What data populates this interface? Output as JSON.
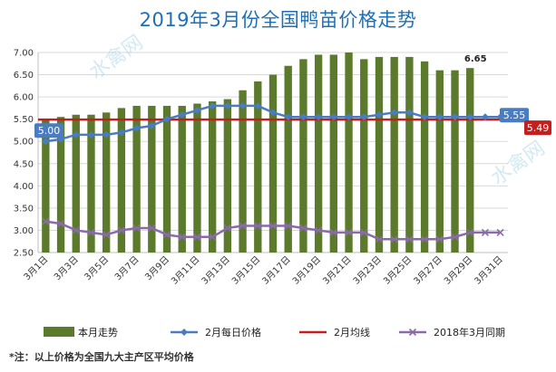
{
  "chart_data": {
    "type": "bar",
    "title": "2019年3月份全国鸭苗价格走势",
    "ylim": [
      2.5,
      7.0
    ],
    "yticks": [
      "2.50",
      "3.00",
      "3.50",
      "4.00",
      "4.50",
      "5.00",
      "5.50",
      "6.00",
      "6.50",
      "7.00"
    ],
    "categories": [
      "3月1日",
      "3月2日",
      "3月3日",
      "3月4日",
      "3月5日",
      "3月6日",
      "3月7日",
      "3月8日",
      "3月9日",
      "3月10日",
      "3月11日",
      "3月12日",
      "3月13日",
      "3月14日",
      "3月15日",
      "3月16日",
      "3月17日",
      "3月18日",
      "3月19日",
      "3月20日",
      "3月21日",
      "3月22日",
      "3月23日",
      "3月24日",
      "3月25日",
      "3月26日",
      "3月27日",
      "3月28日",
      "3月29日",
      "3月30日",
      "3月31日"
    ],
    "tick_labels": [
      "3月1日",
      "3月3日",
      "3月5日",
      "3月7日",
      "3月9日",
      "3月11日",
      "3月13日",
      "3月15日",
      "3月17日",
      "3月19日",
      "3月21日",
      "3月23日",
      "3月25日",
      "3月27日",
      "3月29日",
      "3月31日"
    ],
    "series": [
      {
        "name": "本月走势",
        "kind": "bar",
        "color": "#5b7a2b",
        "values": [
          5.5,
          5.55,
          5.6,
          5.6,
          5.65,
          5.75,
          5.8,
          5.8,
          5.8,
          5.8,
          5.85,
          5.9,
          5.95,
          6.15,
          6.35,
          6.5,
          6.7,
          6.85,
          6.95,
          6.95,
          7.0,
          6.85,
          6.9,
          6.9,
          6.9,
          6.8,
          6.6,
          6.6,
          6.65,
          null,
          null
        ]
      },
      {
        "name": "2月每日价格",
        "kind": "line",
        "color": "#4a7cc2",
        "values": [
          5.0,
          5.05,
          5.15,
          5.15,
          5.15,
          5.2,
          5.3,
          5.35,
          5.5,
          5.6,
          5.7,
          5.8,
          5.8,
          5.8,
          5.8,
          5.65,
          5.55,
          5.55,
          5.55,
          5.55,
          5.55,
          5.55,
          5.6,
          5.65,
          5.65,
          5.55,
          5.55,
          5.55,
          5.55,
          5.55,
          5.55
        ]
      },
      {
        "name": "2月均线",
        "kind": "hline",
        "color": "#c41f1f",
        "value": 5.49
      },
      {
        "name": "2018年3月同期",
        "kind": "line",
        "color": "#8a6aa8",
        "values": [
          3.2,
          3.15,
          3.0,
          2.95,
          2.9,
          3.0,
          3.05,
          3.05,
          2.9,
          2.85,
          2.85,
          2.85,
          3.05,
          3.1,
          3.1,
          3.1,
          3.1,
          3.05,
          3.0,
          2.95,
          2.95,
          2.95,
          2.8,
          2.8,
          2.8,
          2.8,
          2.8,
          2.85,
          2.95,
          2.95,
          2.95
        ]
      }
    ],
    "annotations": {
      "peak_label": "6.65",
      "line_start_label": "5.00",
      "line_end_label": "5.55",
      "avg_label": "5.49"
    },
    "watermark": "水禽网"
  },
  "footnote": "*注：以上价格为全国九大主产区平均价格"
}
